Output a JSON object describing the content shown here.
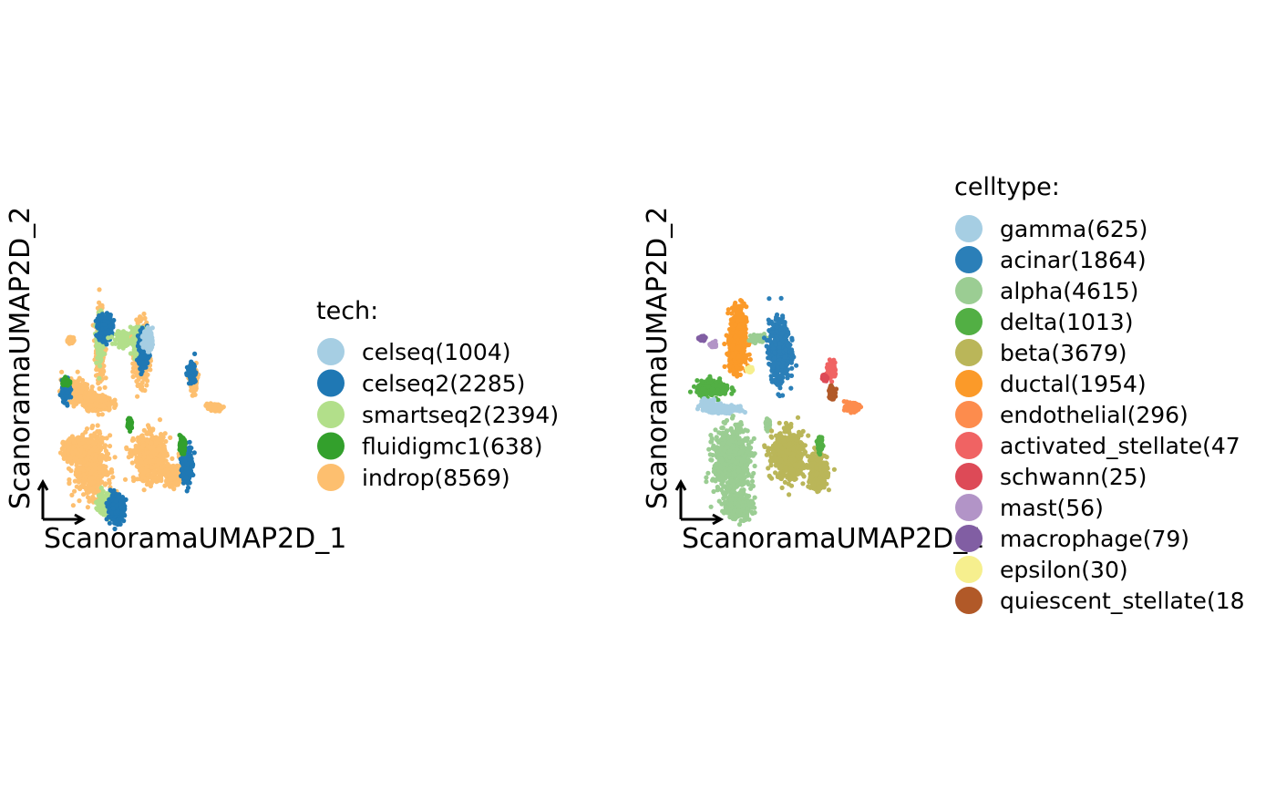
{
  "chart_data": [
    {
      "type": "scatter",
      "title": "",
      "xlabel": "ScanoramaUMAP2D_1",
      "ylabel": "ScanoramaUMAP2D_2",
      "legend_title": "tech:",
      "legend_placement": "right",
      "grid": false,
      "xlim": [
        0,
        10
      ],
      "ylim": [
        0,
        10
      ],
      "series": [
        {
          "name": "celseq(1004)",
          "color": "#a6cee3"
        },
        {
          "name": "celseq2(2285)",
          "color": "#1f78b4"
        },
        {
          "name": "smartseq2(2394)",
          "color": "#b2df8a"
        },
        {
          "name": "fluidigmc1(638)",
          "color": "#33a02c"
        },
        {
          "name": "indrop(8569)",
          "color": "#fdbf6f"
        }
      ],
      "clusters": [
        {
          "series": "indrop(8569)",
          "x": 2.0,
          "y": 6.6,
          "rx": 0.18,
          "ry": 1.6,
          "weight": 3
        },
        {
          "series": "smartseq2(2394)",
          "x": 2.0,
          "y": 7.0,
          "rx": 0.15,
          "ry": 1.0,
          "weight": 2
        },
        {
          "series": "celseq2(2285)",
          "x": 2.2,
          "y": 7.4,
          "rx": 0.3,
          "ry": 0.6,
          "weight": 2
        },
        {
          "series": "smartseq2(2394)",
          "x": 3.1,
          "y": 6.9,
          "rx": 0.4,
          "ry": 0.3,
          "weight": 1
        },
        {
          "series": "indrop(8569)",
          "x": 3.8,
          "y": 6.1,
          "rx": 0.28,
          "ry": 1.35,
          "weight": 3
        },
        {
          "series": "smartseq2(2394)",
          "x": 3.7,
          "y": 6.7,
          "rx": 0.22,
          "ry": 0.7,
          "weight": 2
        },
        {
          "series": "celseq2(2285)",
          "x": 3.9,
          "y": 6.4,
          "rx": 0.2,
          "ry": 0.8,
          "weight": 2
        },
        {
          "series": "indrop(8569)",
          "x": 0.9,
          "y": 4.4,
          "rx": 0.6,
          "ry": 0.5,
          "weight": 2
        },
        {
          "series": "indrop(8569)",
          "x": 1.9,
          "y": 3.8,
          "rx": 0.6,
          "ry": 0.35,
          "weight": 2
        },
        {
          "series": "celseq2(2285)",
          "x": 0.5,
          "y": 4.4,
          "rx": 0.18,
          "ry": 0.45,
          "weight": 1
        },
        {
          "series": "fluidigmc1(638)",
          "x": 0.5,
          "y": 4.8,
          "rx": 0.15,
          "ry": 0.15,
          "weight": 1
        },
        {
          "series": "indrop(8569)",
          "x": 1.6,
          "y": 0.8,
          "rx": 0.7,
          "ry": 1.4,
          "weight": 4
        },
        {
          "series": "indrop(8569)",
          "x": 0.9,
          "y": 1.6,
          "rx": 0.5,
          "ry": 0.5,
          "weight": 2
        },
        {
          "series": "smartseq2(2394)",
          "x": 2.3,
          "y": -1.0,
          "rx": 0.4,
          "ry": 0.5,
          "weight": 2
        },
        {
          "series": "celseq2(2285)",
          "x": 2.7,
          "y": -1.2,
          "rx": 0.35,
          "ry": 0.6,
          "weight": 2
        },
        {
          "series": "fluidigmc1(638)",
          "x": 3.3,
          "y": 2.8,
          "rx": 0.08,
          "ry": 0.2,
          "weight": 1
        },
        {
          "series": "indrop(8569)",
          "x": 4.2,
          "y": 1.2,
          "rx": 0.7,
          "ry": 1.1,
          "weight": 4
        },
        {
          "series": "indrop(8569)",
          "x": 5.3,
          "y": 0.3,
          "rx": 0.4,
          "ry": 0.4,
          "weight": 2
        },
        {
          "series": "celseq2(2285)",
          "x": 5.8,
          "y": 0.9,
          "rx": 0.2,
          "ry": 0.9,
          "weight": 2
        },
        {
          "series": "fluidigmc1(638)",
          "x": 5.6,
          "y": 1.8,
          "rx": 0.1,
          "ry": 0.3,
          "weight": 1
        },
        {
          "series": "indrop(8569)",
          "x": 6.1,
          "y": 4.9,
          "rx": 0.15,
          "ry": 0.6,
          "weight": 1
        },
        {
          "series": "celseq2(2285)",
          "x": 6.0,
          "y": 5.3,
          "rx": 0.15,
          "ry": 0.4,
          "weight": 1
        },
        {
          "series": "indrop(8569)",
          "x": 7.0,
          "y": 3.6,
          "rx": 0.3,
          "ry": 0.15,
          "weight": 1
        },
        {
          "series": "indrop(8569)",
          "x": 0.7,
          "y": 6.8,
          "rx": 0.12,
          "ry": 0.12,
          "weight": 1
        },
        {
          "series": "celseq(1004)",
          "x": 4.1,
          "y": 6.8,
          "rx": 0.2,
          "ry": 0.5,
          "weight": 1
        }
      ]
    },
    {
      "type": "scatter",
      "title": "",
      "xlabel": "ScanoramaUMAP2D_1",
      "ylabel": "ScanoramaUMAP2D_2",
      "legend_title": "celltype:",
      "legend_placement": "right",
      "grid": false,
      "xlim": [
        0,
        10
      ],
      "ylim": [
        0,
        10
      ],
      "series": [
        {
          "name": "gamma(625)",
          "color": "#a6cee3"
        },
        {
          "name": "acinar(1864)",
          "color": "#2b7fb8"
        },
        {
          "name": "alpha(4615)",
          "color": "#9bcd93"
        },
        {
          "name": "delta(1013)",
          "color": "#52af44"
        },
        {
          "name": "beta(3679)",
          "color": "#bab659"
        },
        {
          "name": "ductal(1954)",
          "color": "#fb9a29"
        },
        {
          "name": "endothelial(296)",
          "color": "#fd8c4d"
        },
        {
          "name": "activated_stellate(47",
          "color": "#f06363"
        },
        {
          "name": "schwann(25)",
          "color": "#dd4a57"
        },
        {
          "name": "mast(56)",
          "color": "#b294c7"
        },
        {
          "name": "macrophage(79)",
          "color": "#815ea3"
        },
        {
          "name": "epsilon(30)",
          "color": "#f6ef8e"
        },
        {
          "name": "quiescent_stellate(18",
          "color": "#b15928"
        }
      ],
      "clusters": [
        {
          "series": "ductal(1954)",
          "x": 2.0,
          "y": 6.9,
          "rx": 0.35,
          "ry": 1.5,
          "weight": 3
        },
        {
          "series": "ductal(1954)",
          "x": 1.9,
          "y": 6.0,
          "rx": 0.3,
          "ry": 0.6,
          "weight": 2
        },
        {
          "series": "alpha(4615)",
          "x": 2.9,
          "y": 6.9,
          "rx": 0.3,
          "ry": 0.15,
          "weight": 1
        },
        {
          "series": "acinar(1864)",
          "x": 3.8,
          "y": 6.3,
          "rx": 0.45,
          "ry": 1.4,
          "weight": 4
        },
        {
          "series": "delta(1013)",
          "x": 0.9,
          "y": 4.5,
          "rx": 0.7,
          "ry": 0.35,
          "weight": 2
        },
        {
          "series": "gamma(625)",
          "x": 0.7,
          "y": 3.7,
          "rx": 0.35,
          "ry": 0.3,
          "weight": 1
        },
        {
          "series": "gamma(625)",
          "x": 1.5,
          "y": 3.5,
          "rx": 0.5,
          "ry": 0.15,
          "weight": 1
        },
        {
          "series": "alpha(4615)",
          "x": 1.7,
          "y": 1.0,
          "rx": 0.8,
          "ry": 1.6,
          "weight": 5
        },
        {
          "series": "alpha(4615)",
          "x": 2.0,
          "y": -1.1,
          "rx": 0.6,
          "ry": 0.6,
          "weight": 2
        },
        {
          "series": "alpha(4615)",
          "x": 3.3,
          "y": 2.8,
          "rx": 0.08,
          "ry": 0.2,
          "weight": 1
        },
        {
          "series": "beta(3679)",
          "x": 4.2,
          "y": 1.3,
          "rx": 0.7,
          "ry": 1.1,
          "weight": 4
        },
        {
          "series": "beta(3679)",
          "x": 5.5,
          "y": 0.6,
          "rx": 0.4,
          "ry": 0.9,
          "weight": 2
        },
        {
          "series": "delta(1013)",
          "x": 5.6,
          "y": 1.8,
          "rx": 0.1,
          "ry": 0.3,
          "weight": 1
        },
        {
          "series": "activated_stellate(47",
          "x": 6.1,
          "y": 5.4,
          "rx": 0.15,
          "ry": 0.4,
          "weight": 1
        },
        {
          "series": "quiescent_stellate(18",
          "x": 6.1,
          "y": 4.3,
          "rx": 0.12,
          "ry": 0.3,
          "weight": 1
        },
        {
          "series": "endothelial(296)",
          "x": 7.0,
          "y": 3.6,
          "rx": 0.3,
          "ry": 0.18,
          "weight": 1
        },
        {
          "series": "macrophage(79)",
          "x": 0.4,
          "y": 6.9,
          "rx": 0.12,
          "ry": 0.08,
          "weight": 1
        },
        {
          "series": "mast(56)",
          "x": 0.9,
          "y": 6.6,
          "rx": 0.1,
          "ry": 0.08,
          "weight": 1
        },
        {
          "series": "schwann(25)",
          "x": 5.8,
          "y": 5.0,
          "rx": 0.08,
          "ry": 0.12,
          "weight": 1
        },
        {
          "series": "epsilon(30)",
          "x": 2.5,
          "y": 5.4,
          "rx": 0.1,
          "ry": 0.1,
          "weight": 1
        }
      ]
    }
  ]
}
